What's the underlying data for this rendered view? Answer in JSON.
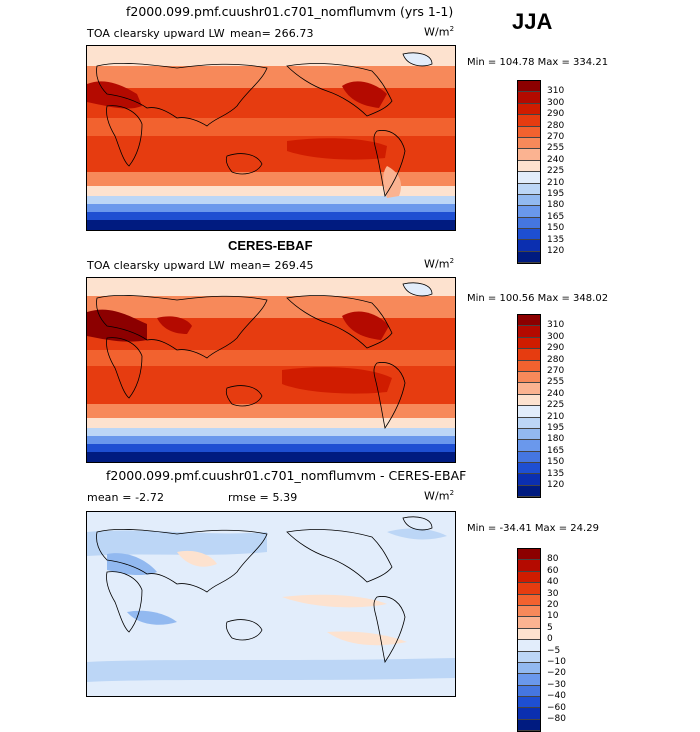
{
  "header": {
    "title": "f2000.099.pmf.cuushr01.c701_nomflumvm (yrs 1-1)",
    "season": "JJA"
  },
  "panels": [
    {
      "id": "model",
      "variable": "TOA clearsky upward LW",
      "stat_left": "mean= 266.73",
      "units": "W/m",
      "units_sup": "2",
      "minmax": "Min = 104.78 Max = 334.21",
      "ticks": [
        "310",
        "300",
        "290",
        "280",
        "270",
        "255",
        "240",
        "225",
        "210",
        "195",
        "180",
        "165",
        "150",
        "135",
        "120"
      ],
      "colors": [
        "#8c0000",
        "#b40a00",
        "#d01c00",
        "#e63c10",
        "#f2622f",
        "#f7895a",
        "#fbb391",
        "#fde2cf",
        "#e2edfb",
        "#bcd6f6",
        "#92b9f0",
        "#6a98ec",
        "#4576e0",
        "#1e4fd2",
        "#0b2fb0",
        "#001b80"
      ]
    },
    {
      "id": "obs",
      "title": "CERES-EBAF",
      "variable": "TOA clearsky upward LW",
      "stat_left": "mean= 269.45",
      "units": "W/m",
      "units_sup": "2",
      "minmax": "Min = 100.56 Max = 348.02",
      "ticks": [
        "310",
        "300",
        "290",
        "280",
        "270",
        "255",
        "240",
        "225",
        "210",
        "195",
        "180",
        "165",
        "150",
        "135",
        "120"
      ],
      "colors": [
        "#8c0000",
        "#b40a00",
        "#d01c00",
        "#e63c10",
        "#f2622f",
        "#f7895a",
        "#fbb391",
        "#fde2cf",
        "#e2edfb",
        "#bcd6f6",
        "#92b9f0",
        "#6a98ec",
        "#4576e0",
        "#1e4fd2",
        "#0b2fb0",
        "#001b80"
      ]
    },
    {
      "id": "diff",
      "title": "f2000.099.pmf.cuushr01.c701_nomflumvm - CERES-EBAF",
      "stat_left": "mean =  -2.72",
      "stat_mid": "rmse =   5.39",
      "units": "W/m",
      "units_sup": "2",
      "minmax": "Min = -34.41 Max =  24.29",
      "ticks": [
        "80",
        "60",
        "40",
        "30",
        "20",
        "10",
        "5",
        "0",
        "−5",
        "−10",
        "−20",
        "−30",
        "−40",
        "−60",
        "−80"
      ],
      "colors": [
        "#8c0000",
        "#b40a00",
        "#d01c00",
        "#e63c10",
        "#f2622f",
        "#f7895a",
        "#fbb391",
        "#fde2cf",
        "#e2edfb",
        "#bcd6f6",
        "#92b9f0",
        "#6a98ec",
        "#4576e0",
        "#1e4fd2",
        "#0b2fb0",
        "#001b80"
      ]
    }
  ]
}
